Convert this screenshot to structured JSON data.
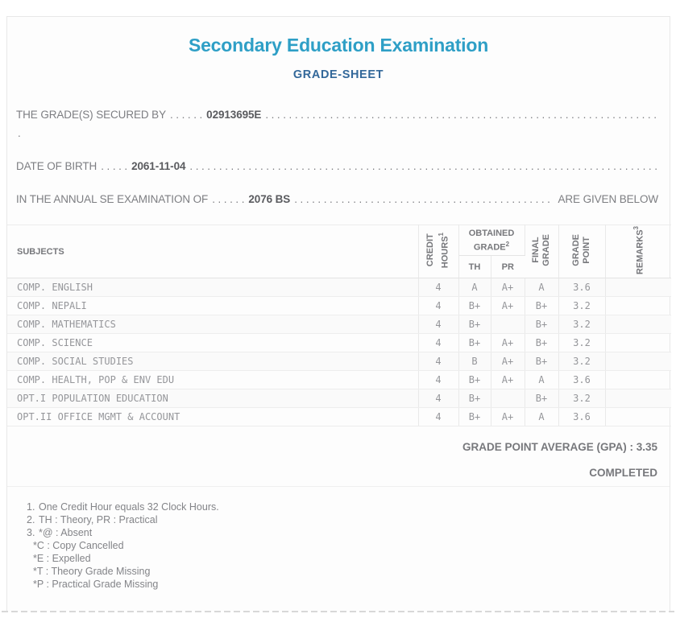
{
  "page": {
    "title": "Secondary Education Examination",
    "subtitle": "GRADE-SHEET"
  },
  "intro": {
    "dots_fill": ". . . . . . . . . . . . . . . . . . . . . . . . . . . . . . . . . . . . . . . . . . . . . . . . . . . . . . . . . . . . . . . . . . . . . . . . . . . . . . . . . . . . . . . . . . . . . . . . . . . . . . . . . . . . . . . .",
    "line1": {
      "label": "THE GRADE(S) SECURED BY",
      "dots_lead": ". . . . . .",
      "value": "02913695E"
    },
    "stray_period": ".",
    "line2": {
      "label": "DATE OF BIRTH",
      "dots_lead": ". . . . .",
      "value": "2061-11-04"
    },
    "line3": {
      "label": "IN THE ANNUAL SE EXAMINATION OF",
      "dots_lead": ". . . . . .",
      "value": "2076 BS",
      "suffix": "ARE GIVEN BELOW"
    }
  },
  "table": {
    "headers": {
      "subjects": "SUBJECTS",
      "credit": {
        "line1": "CREDIT",
        "line2": "HOURS",
        "sup": "1"
      },
      "obtained": {
        "line1": "OBTAINED",
        "line2": "GRADE",
        "sup": "2"
      },
      "th": "TH",
      "pr": "PR",
      "final": {
        "line1": "FINAL",
        "line2": "GRADE"
      },
      "grade_point": {
        "line1": "GRADE",
        "line2": "POINT"
      },
      "remarks": {
        "text": "REMARKS",
        "sup": "3"
      }
    },
    "rows": [
      {
        "subject": "COMP. ENGLISH",
        "credit_hours": "4",
        "th": "A",
        "pr": "A+",
        "final_grade": "A",
        "grade_point": "3.6",
        "remarks": ""
      },
      {
        "subject": "COMP. NEPALI",
        "credit_hours": "4",
        "th": "B+",
        "pr": "A+",
        "final_grade": "B+",
        "grade_point": "3.2",
        "remarks": ""
      },
      {
        "subject": "COMP. MATHEMATICS",
        "credit_hours": "4",
        "th": "B+",
        "pr": "",
        "final_grade": "B+",
        "grade_point": "3.2",
        "remarks": ""
      },
      {
        "subject": "COMP. SCIENCE",
        "credit_hours": "4",
        "th": "B+",
        "pr": "A+",
        "final_grade": "B+",
        "grade_point": "3.2",
        "remarks": ""
      },
      {
        "subject": "COMP. SOCIAL STUDIES",
        "credit_hours": "4",
        "th": "B",
        "pr": "A+",
        "final_grade": "B+",
        "grade_point": "3.2",
        "remarks": ""
      },
      {
        "subject": "COMP. HEALTH, POP & ENV EDU",
        "credit_hours": "4",
        "th": "B+",
        "pr": "A+",
        "final_grade": "A",
        "grade_point": "3.6",
        "remarks": ""
      },
      {
        "subject": "OPT.I POPULATION EDUCATION",
        "credit_hours": "4",
        "th": "B+",
        "pr": "",
        "final_grade": "B+",
        "grade_point": "3.2",
        "remarks": ""
      },
      {
        "subject": "OPT.II OFFICE MGMT & ACCOUNT",
        "credit_hours": "4",
        "th": "B+",
        "pr": "A+",
        "final_grade": "A",
        "grade_point": "3.6",
        "remarks": ""
      }
    ]
  },
  "summary": {
    "gpa_line": "GRADE POINT AVERAGE (GPA) : 3.35",
    "status": "COMPLETED"
  },
  "footnotes": [
    {
      "marker": "1.",
      "text": "One Credit Hour equals 32 Clock Hours."
    },
    {
      "marker": "2.",
      "text": "TH : Theory, PR : Practical"
    },
    {
      "marker": "3.",
      "text": "*@ : Absent"
    },
    {
      "marker": "",
      "text": "*C : Copy Cancelled"
    },
    {
      "marker": "",
      "text": "*E : Expelled"
    },
    {
      "marker": "",
      "text": "*T : Theory Grade Missing"
    },
    {
      "marker": "",
      "text": "*P : Practical Grade Missing"
    }
  ],
  "colors": {
    "title_teal": "#2e9fc6",
    "subtitle_blue": "#33689a",
    "body_gray": "#7d7e82",
    "cell_gray": "#95969a",
    "border_gray": "#e8e8e8"
  }
}
